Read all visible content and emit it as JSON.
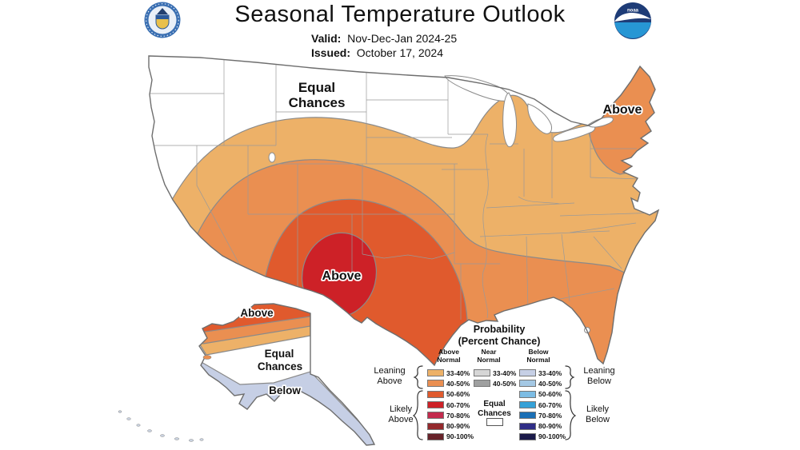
{
  "header": {
    "title": "Seasonal Temperature Outlook",
    "valid_label": "Valid:",
    "valid_value": "Nov-Dec-Jan 2024-25",
    "issued_label": "Issued:",
    "issued_value": "October 17, 2024",
    "noaa_text": "noaa"
  },
  "map": {
    "labels": {
      "conus_equal_line1": "Equal",
      "conus_equal_line2": "Chances",
      "conus_above_center": "Above",
      "conus_above_northeast": "Above",
      "ak_above": "Above",
      "ak_equal_line1": "Equal",
      "ak_equal_line2": "Chances",
      "ak_below": "Below"
    },
    "colors": {
      "equal_chances": "#FFFFFF",
      "above_33_40": "#EDB168",
      "above_40_50": "#EA8F51",
      "above_50_60": "#E05A2D",
      "above_60_70": "#CD2127",
      "below_33_40": "#C6CFE5",
      "island_speck": "#EA8F51",
      "aleutian_speck": "#C9D2E0"
    }
  },
  "legend": {
    "title_line1": "Probability",
    "title_line2": "(Percent Chance)",
    "above": {
      "header_line1": "Above",
      "header_line2": "Normal",
      "rows": [
        {
          "label": "33-40%",
          "color": "#EDB168"
        },
        {
          "label": "40-50%",
          "color": "#EA8F51"
        },
        {
          "label": "50-60%",
          "color": "#E05A2D"
        },
        {
          "label": "60-70%",
          "color": "#CD2127"
        },
        {
          "label": "70-80%",
          "color": "#C32B4D"
        },
        {
          "label": "80-90%",
          "color": "#93292C"
        },
        {
          "label": "90-100%",
          "color": "#67232A"
        }
      ]
    },
    "near": {
      "header_line1": "Near",
      "header_line2": "Normal",
      "rows": [
        {
          "label": "33-40%",
          "color": "#D6D6D6"
        },
        {
          "label": "40-50%",
          "color": "#9FA0A0"
        }
      ],
      "equal_line1": "Equal",
      "equal_line2": "Chances",
      "equal_color": "#FFFFFF"
    },
    "below": {
      "header_line1": "Below",
      "header_line2": "Normal",
      "rows": [
        {
          "label": "33-40%",
          "color": "#C6CFE5"
        },
        {
          "label": "40-50%",
          "color": "#A4C8E4"
        },
        {
          "label": "50-60%",
          "color": "#7CBCE4"
        },
        {
          "label": "60-70%",
          "color": "#35A1D7"
        },
        {
          "label": "70-80%",
          "color": "#1A6FB5"
        },
        {
          "label": "80-90%",
          "color": "#2F2D86"
        },
        {
          "label": "90-100%",
          "color": "#1B1A49"
        }
      ]
    },
    "groups": {
      "leaning_above_line1": "Leaning",
      "leaning_above_line2": "Above",
      "likely_above_line1": "Likely",
      "likely_above_line2": "Above",
      "leaning_below_line1": "Leaning",
      "leaning_below_line2": "Below",
      "likely_below_line1": "Likely",
      "likely_below_line2": "Below"
    }
  }
}
